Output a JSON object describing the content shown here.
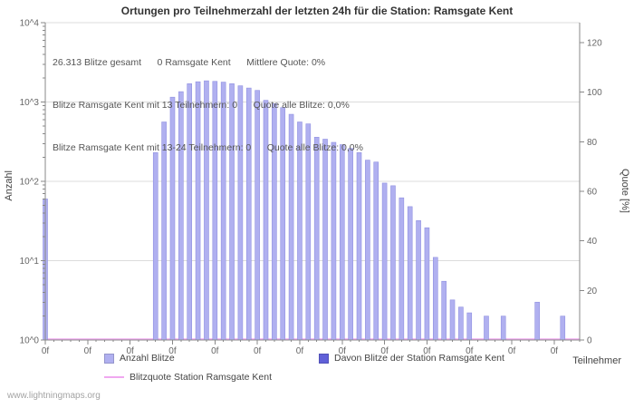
{
  "title": "Ortungen pro Teilnehmerzahl der letzten 24h für die Station: Ramsgate Kent",
  "annotations": {
    "line1": "26.313 Blitze gesamt      0 Ramsgate Kent      Mittlere Quote: 0%",
    "line2": "Blitze Ramsgate Kent mit 13 Teilnehmern: 0      Quote alle Blitze: 0,0%",
    "line3": "Blitze Ramsgate Kent mit 13-24 Teilnehmern: 0      Quote alle Blitze: 0,0%"
  },
  "watermark": "www.lightningmaps.org",
  "chart_data": {
    "type": "bar",
    "title": "Ortungen pro Teilnehmerzahl der letzten 24h für die Station: Ramsgate Kent",
    "xlabel": "Teilnehmer",
    "ylabel_left": "Anzahl",
    "ylabel_right": "Quote [%]",
    "x_range": [
      0,
      63
    ],
    "x_tick_step": 5,
    "x_tick_label": "0f",
    "y_left": {
      "scale": "log",
      "range": [
        1,
        10000
      ],
      "tick_labels": [
        "10^0",
        "10^1",
        "10^2",
        "10^3",
        "10^4"
      ]
    },
    "y_right": {
      "range": [
        0,
        128
      ],
      "ticks": [
        0,
        20,
        40,
        60,
        80,
        100,
        120
      ]
    },
    "bars": {
      "name": "Anzahl Blitze",
      "color": "#b0b0f0",
      "edge": "#9090e0",
      "points": [
        [
          0,
          60
        ],
        [
          13,
          230
        ],
        [
          14,
          560
        ],
        [
          15,
          1150
        ],
        [
          16,
          1350
        ],
        [
          17,
          1700
        ],
        [
          18,
          1800
        ],
        [
          19,
          1850
        ],
        [
          20,
          1820
        ],
        [
          21,
          1780
        ],
        [
          22,
          1700
        ],
        [
          23,
          1600
        ],
        [
          24,
          1500
        ],
        [
          25,
          1400
        ],
        [
          26,
          1050
        ],
        [
          27,
          950
        ],
        [
          28,
          850
        ],
        [
          29,
          700
        ],
        [
          30,
          560
        ],
        [
          31,
          530
        ],
        [
          32,
          360
        ],
        [
          33,
          340
        ],
        [
          34,
          310
        ],
        [
          35,
          290
        ],
        [
          36,
          260
        ],
        [
          37,
          230
        ],
        [
          38,
          185
        ],
        [
          39,
          175
        ],
        [
          40,
          95
        ],
        [
          41,
          88
        ],
        [
          42,
          62
        ],
        [
          43,
          48
        ],
        [
          44,
          32
        ],
        [
          45,
          26
        ],
        [
          46,
          11
        ],
        [
          47,
          5.5
        ],
        [
          48,
          3.2
        ],
        [
          49,
          2.6
        ],
        [
          50,
          2.2
        ],
        [
          52,
          2
        ],
        [
          54,
          2
        ],
        [
          58,
          3
        ],
        [
          61,
          2
        ]
      ]
    },
    "station_bars": {
      "name": "Davon Blitze der Station Ramsgate Kent",
      "color": "#6060d8",
      "points": []
    },
    "quote_line": {
      "name": "Blitzquote Station Ramsgate Kent",
      "color": "#f0a8f0",
      "value": 0
    }
  }
}
